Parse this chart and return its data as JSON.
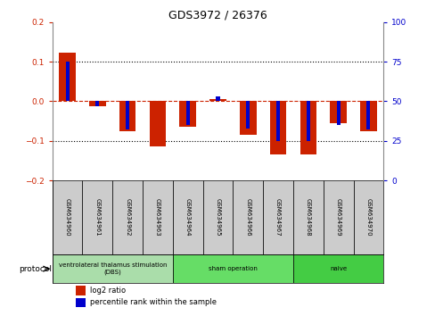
{
  "title": "GDS3972 / 26376",
  "samples": [
    "GSM634960",
    "GSM634961",
    "GSM634962",
    "GSM634963",
    "GSM634964",
    "GSM634965",
    "GSM634966",
    "GSM634967",
    "GSM634968",
    "GSM634969",
    "GSM634970"
  ],
  "log2_ratio": [
    0.122,
    -0.012,
    -0.075,
    -0.115,
    -0.065,
    0.005,
    -0.085,
    -0.135,
    -0.135,
    -0.055,
    -0.075
  ],
  "percentile_rank": [
    75,
    47,
    32,
    50,
    35,
    53,
    33,
    25,
    25,
    35,
    32
  ],
  "ylim_left": [
    -0.2,
    0.2
  ],
  "ylim_right": [
    0,
    100
  ],
  "yticks_left": [
    -0.2,
    -0.1,
    0.0,
    0.1,
    0.2
  ],
  "yticks_right": [
    0,
    25,
    50,
    75,
    100
  ],
  "bar_color_red": "#CC2200",
  "bar_color_blue": "#0000CC",
  "zero_line_color": "#CC2200",
  "dotted_line_color": "#000000",
  "proto_dbs_color": "#AADDAA",
  "proto_sham_color": "#66DD66",
  "proto_naive_color": "#44CC44",
  "sample_box_color": "#CCCCCC",
  "legend_red_label": "log2 ratio",
  "legend_blue_label": "percentile rank within the sample",
  "protocol_label": "protocol",
  "proto_ranges": [
    {
      "start": 0,
      "end": 3,
      "label": "ventrolateral thalamus stimulation\n(DBS)"
    },
    {
      "start": 4,
      "end": 7,
      "label": "sham operation"
    },
    {
      "start": 8,
      "end": 10,
      "label": "naive"
    }
  ]
}
